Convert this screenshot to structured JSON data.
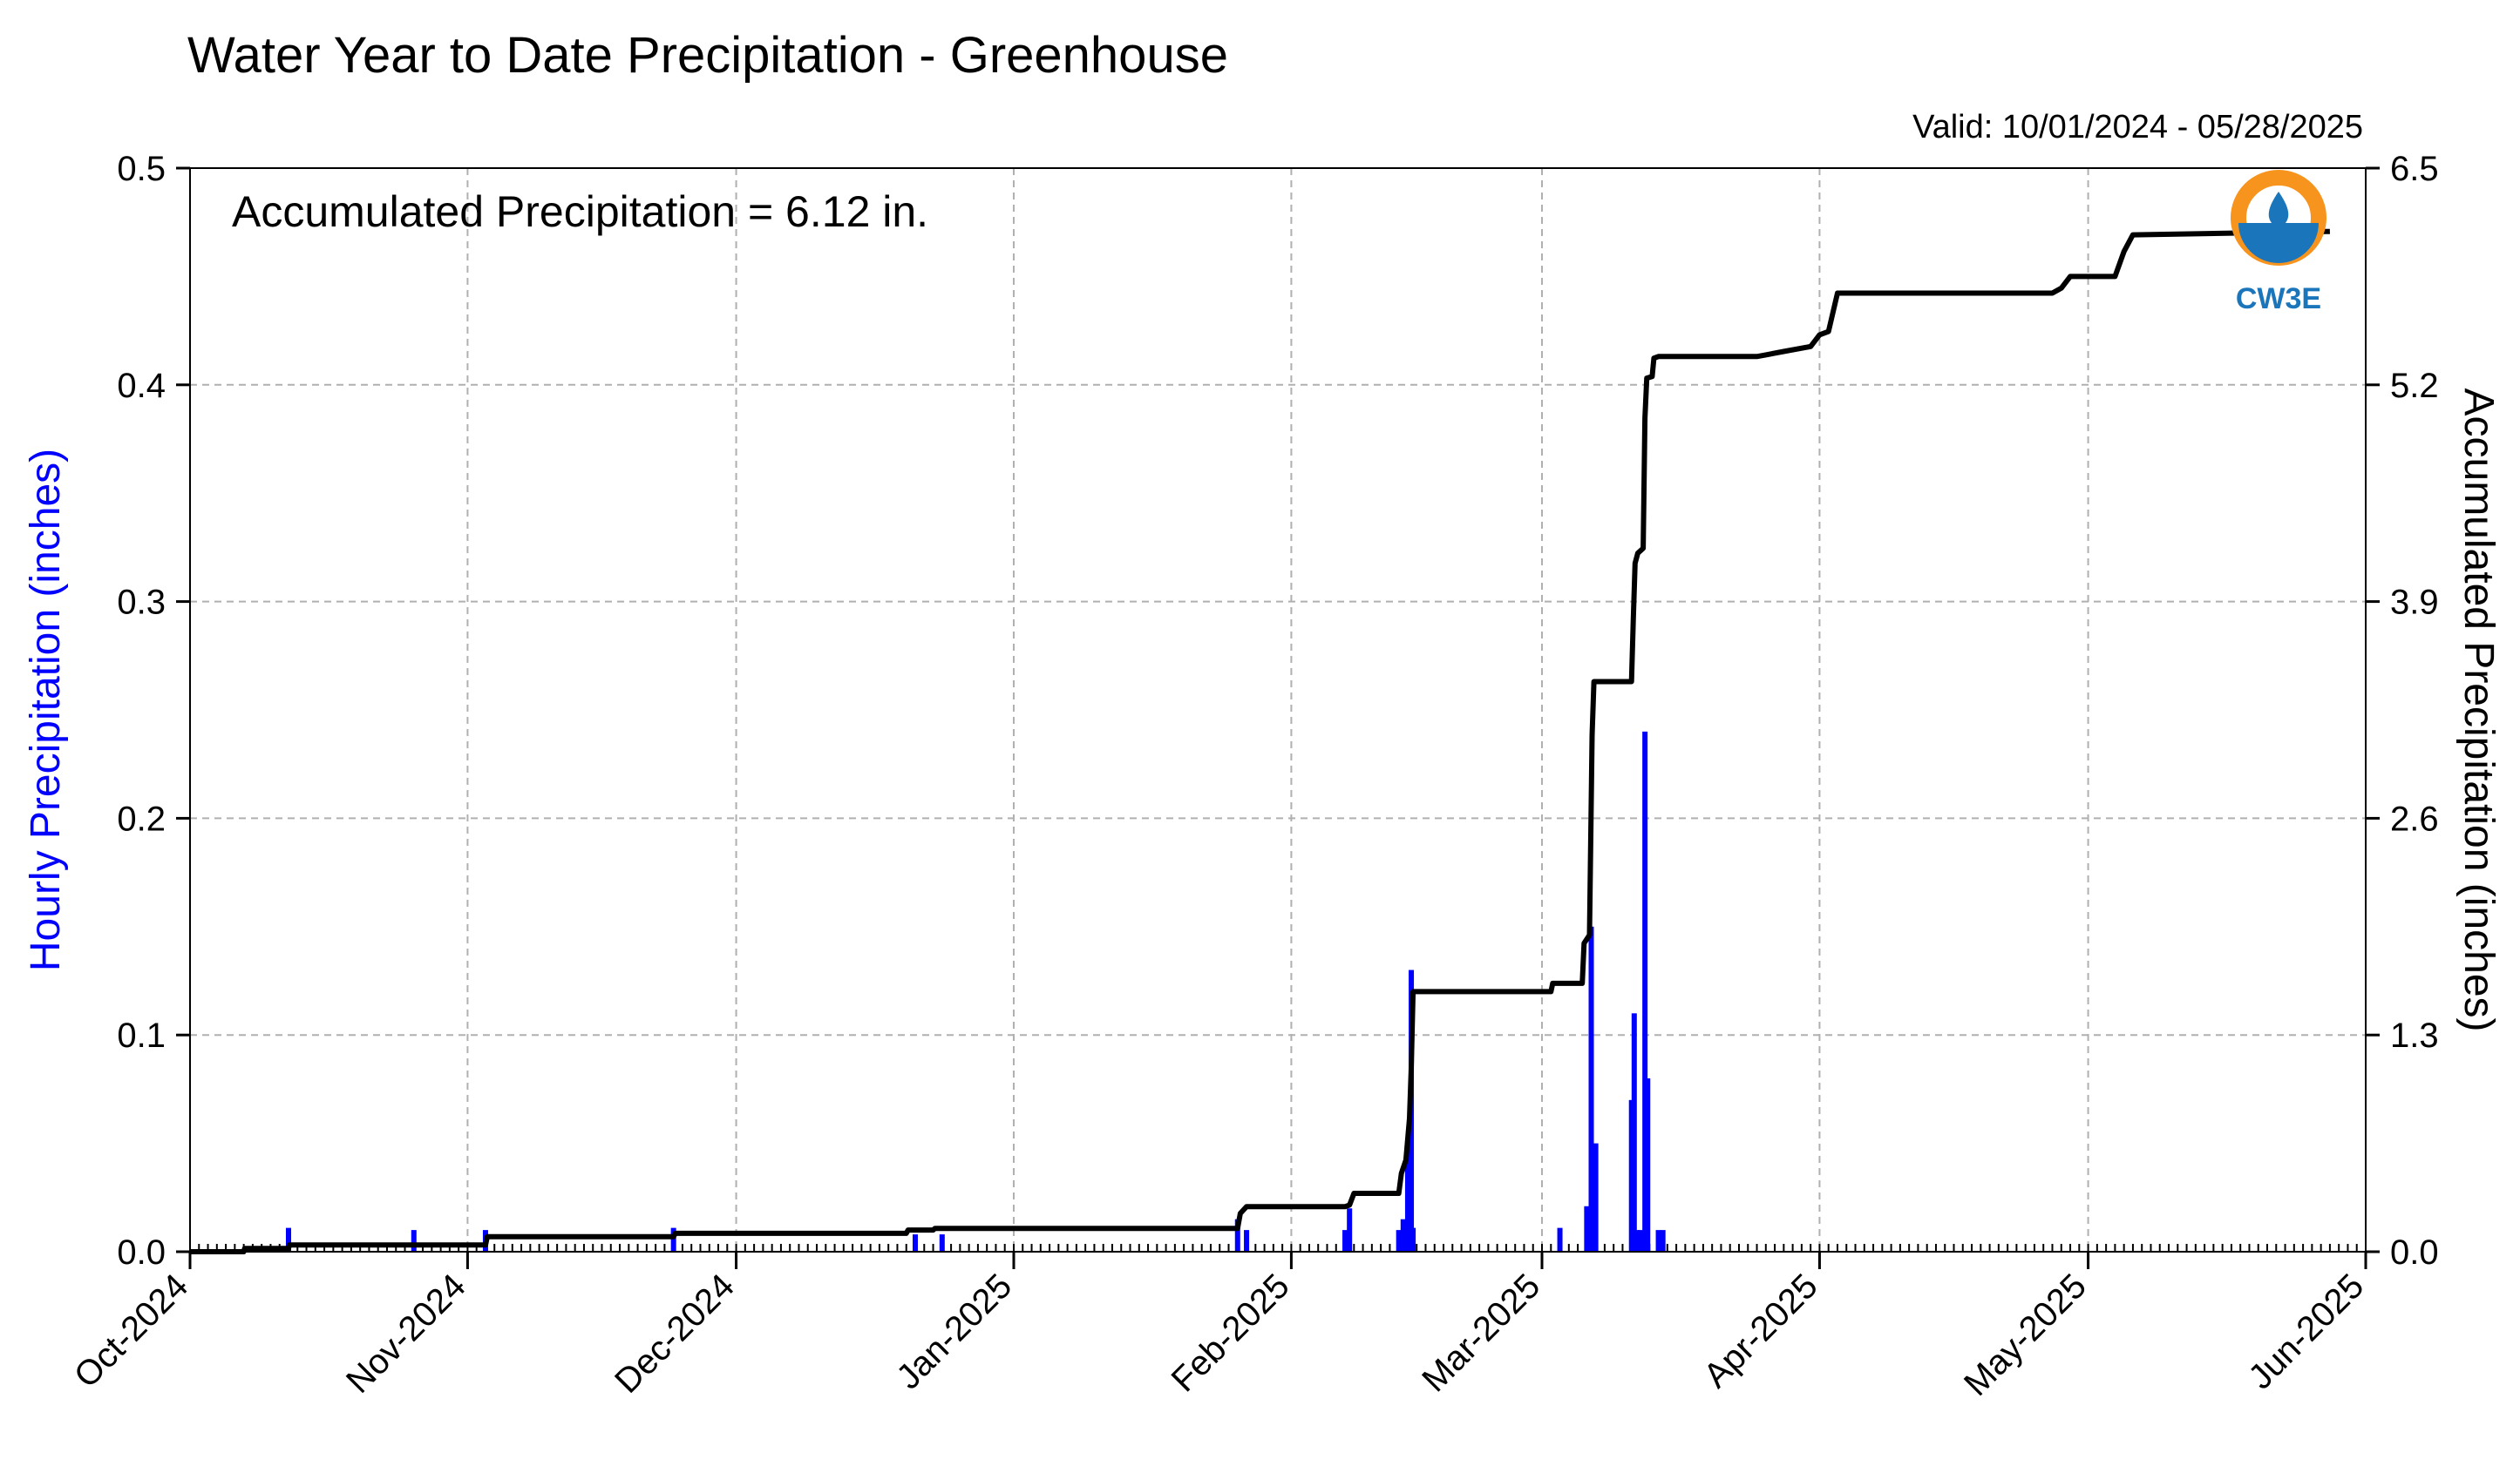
{
  "title": "Water Year to Date Precipitation - Greenhouse",
  "valid_text": "Valid: 10/01/2024 - 05/28/2025",
  "annotation": "Accumulated Precipitation = 6.12 in.",
  "logo_text": "CW3E",
  "colors": {
    "hourly": "#0000ff",
    "accumulated": "#000000",
    "grid": "#b0b0b0",
    "logo_orange": "#f7941d",
    "logo_blue": "#1b75bb"
  },
  "chart_data": {
    "type": "bar+line",
    "x_axis": {
      "type": "date",
      "range": [
        "2024-10-01",
        "2025-06-01"
      ],
      "ticks": [
        {
          "date": "2024-10-01",
          "label": "Oct-2024"
        },
        {
          "date": "2024-11-01",
          "label": "Nov-2024"
        },
        {
          "date": "2024-12-01",
          "label": "Dec-2024"
        },
        {
          "date": "2025-01-01",
          "label": "Jan-2025"
        },
        {
          "date": "2025-02-01",
          "label": "Feb-2025"
        },
        {
          "date": "2025-03-01",
          "label": "Mar-2025"
        },
        {
          "date": "2025-04-01",
          "label": "Apr-2025"
        },
        {
          "date": "2025-05-01",
          "label": "May-2025"
        },
        {
          "date": "2025-06-01",
          "label": "Jun-2025"
        }
      ]
    },
    "y_left": {
      "label": "Hourly Precipitation (inches)",
      "range": [
        0,
        0.5
      ],
      "ticks": [
        "0.0",
        "0.1",
        "0.2",
        "0.3",
        "0.4",
        "0.5"
      ]
    },
    "y_right": {
      "label": "Accumulated Precipitation (inches)",
      "range": [
        0,
        6.5
      ],
      "ticks": [
        "0.0",
        "1.3",
        "2.6",
        "3.9",
        "5.2",
        "6.5"
      ]
    },
    "grid": true,
    "hourly": [
      {
        "date": "2024-10-12",
        "value": 0.011
      },
      {
        "date": "2024-10-26",
        "value": 0.01
      },
      {
        "date": "2024-11-03",
        "value": 0.01
      },
      {
        "date": "2024-11-24",
        "value": 0.011
      },
      {
        "date": "2024-12-21",
        "value": 0.008
      },
      {
        "date": "2024-12-24",
        "value": 0.008
      },
      {
        "date": "2025-01-26",
        "value": 0.015
      },
      {
        "date": "2025-01-27",
        "value": 0.01
      },
      {
        "date": "2025-02-07",
        "value": 0.01
      },
      {
        "date": "2025-02-07.5",
        "value": 0.02
      },
      {
        "date": "2025-02-13",
        "value": 0.01
      },
      {
        "date": "2025-02-13.5",
        "value": 0.015
      },
      {
        "date": "2025-02-14",
        "value": 0.04
      },
      {
        "date": "2025-02-14.2",
        "value": 0.06
      },
      {
        "date": "2025-02-14.4",
        "value": 0.13
      },
      {
        "date": "2025-02-14.6",
        "value": 0.011
      },
      {
        "date": "2025-03-03",
        "value": 0.011
      },
      {
        "date": "2025-03-06",
        "value": 0.021
      },
      {
        "date": "2025-03-06.5",
        "value": 0.15
      },
      {
        "date": "2025-03-07",
        "value": 0.05
      },
      {
        "date": "2025-03-11",
        "value": 0.07
      },
      {
        "date": "2025-03-11.3",
        "value": 0.11
      },
      {
        "date": "2025-03-11.6",
        "value": 0.01
      },
      {
        "date": "2025-03-12",
        "value": 0.01
      },
      {
        "date": "2025-03-12.5",
        "value": 0.24
      },
      {
        "date": "2025-03-12.8",
        "value": 0.08
      },
      {
        "date": "2025-03-14",
        "value": 0.01
      },
      {
        "date": "2025-03-14.5",
        "value": 0.01
      }
    ],
    "accumulated": [
      {
        "date": "2024-10-01",
        "value": 0.0
      },
      {
        "date": "2024-10-07",
        "value": 0.0
      },
      {
        "date": "2024-10-07.1",
        "value": 0.02
      },
      {
        "date": "2024-10-12",
        "value": 0.02
      },
      {
        "date": "2024-10-12.1",
        "value": 0.04
      },
      {
        "date": "2024-11-03",
        "value": 0.04
      },
      {
        "date": "2024-11-03.2",
        "value": 0.09
      },
      {
        "date": "2024-11-24",
        "value": 0.09
      },
      {
        "date": "2024-11-24.2",
        "value": 0.11
      },
      {
        "date": "2024-12-20",
        "value": 0.11
      },
      {
        "date": "2024-12-20.2",
        "value": 0.13
      },
      {
        "date": "2024-12-23",
        "value": 0.13
      },
      {
        "date": "2024-12-23.2",
        "value": 0.14
      },
      {
        "date": "2025-01-26",
        "value": 0.14
      },
      {
        "date": "2025-01-26.3",
        "value": 0.23
      },
      {
        "date": "2025-01-27",
        "value": 0.27
      },
      {
        "date": "2025-02-07",
        "value": 0.27
      },
      {
        "date": "2025-02-07.5",
        "value": 0.28
      },
      {
        "date": "2025-02-08",
        "value": 0.35
      },
      {
        "date": "2025-02-13",
        "value": 0.35
      },
      {
        "date": "2025-02-13.3",
        "value": 0.47
      },
      {
        "date": "2025-02-13.8",
        "value": 0.55
      },
      {
        "date": "2025-02-14.2",
        "value": 0.8
      },
      {
        "date": "2025-02-14.4",
        "value": 1.1
      },
      {
        "date": "2025-02-14.6",
        "value": 1.56
      },
      {
        "date": "2025-03-02",
        "value": 1.56
      },
      {
        "date": "2025-03-02.2",
        "value": 1.61
      },
      {
        "date": "2025-03-05.5",
        "value": 1.61
      },
      {
        "date": "2025-03-05.7",
        "value": 1.85
      },
      {
        "date": "2025-03-06.3",
        "value": 1.9
      },
      {
        "date": "2025-03-06.6",
        "value": 3.1
      },
      {
        "date": "2025-03-06.8",
        "value": 3.42
      },
      {
        "date": "2025-03-11",
        "value": 3.42
      },
      {
        "date": "2025-03-11.2",
        "value": 3.8
      },
      {
        "date": "2025-03-11.4",
        "value": 4.13
      },
      {
        "date": "2025-03-11.7",
        "value": 4.19
      },
      {
        "date": "2025-03-12.3",
        "value": 4.22
      },
      {
        "date": "2025-03-12.5",
        "value": 5.0
      },
      {
        "date": "2025-03-12.7",
        "value": 5.24
      },
      {
        "date": "2025-03-13.3",
        "value": 5.25
      },
      {
        "date": "2025-03-13.5",
        "value": 5.36
      },
      {
        "date": "2025-03-14",
        "value": 5.37
      },
      {
        "date": "2025-03-25",
        "value": 5.37
      },
      {
        "date": "2025-03-26",
        "value": 5.38
      },
      {
        "date": "2025-03-28",
        "value": 5.4
      },
      {
        "date": "2025-03-31",
        "value": 5.43
      },
      {
        "date": "2025-04-01",
        "value": 5.5
      },
      {
        "date": "2025-04-02",
        "value": 5.52
      },
      {
        "date": "2025-04-03",
        "value": 5.75
      },
      {
        "date": "2025-04-27",
        "value": 5.75
      },
      {
        "date": "2025-04-28",
        "value": 5.78
      },
      {
        "date": "2025-04-29",
        "value": 5.85
      },
      {
        "date": "2025-05-04",
        "value": 5.85
      },
      {
        "date": "2025-05-05",
        "value": 6.0
      },
      {
        "date": "2025-05-06",
        "value": 6.1
      },
      {
        "date": "2025-05-28",
        "value": 6.12
      }
    ]
  }
}
